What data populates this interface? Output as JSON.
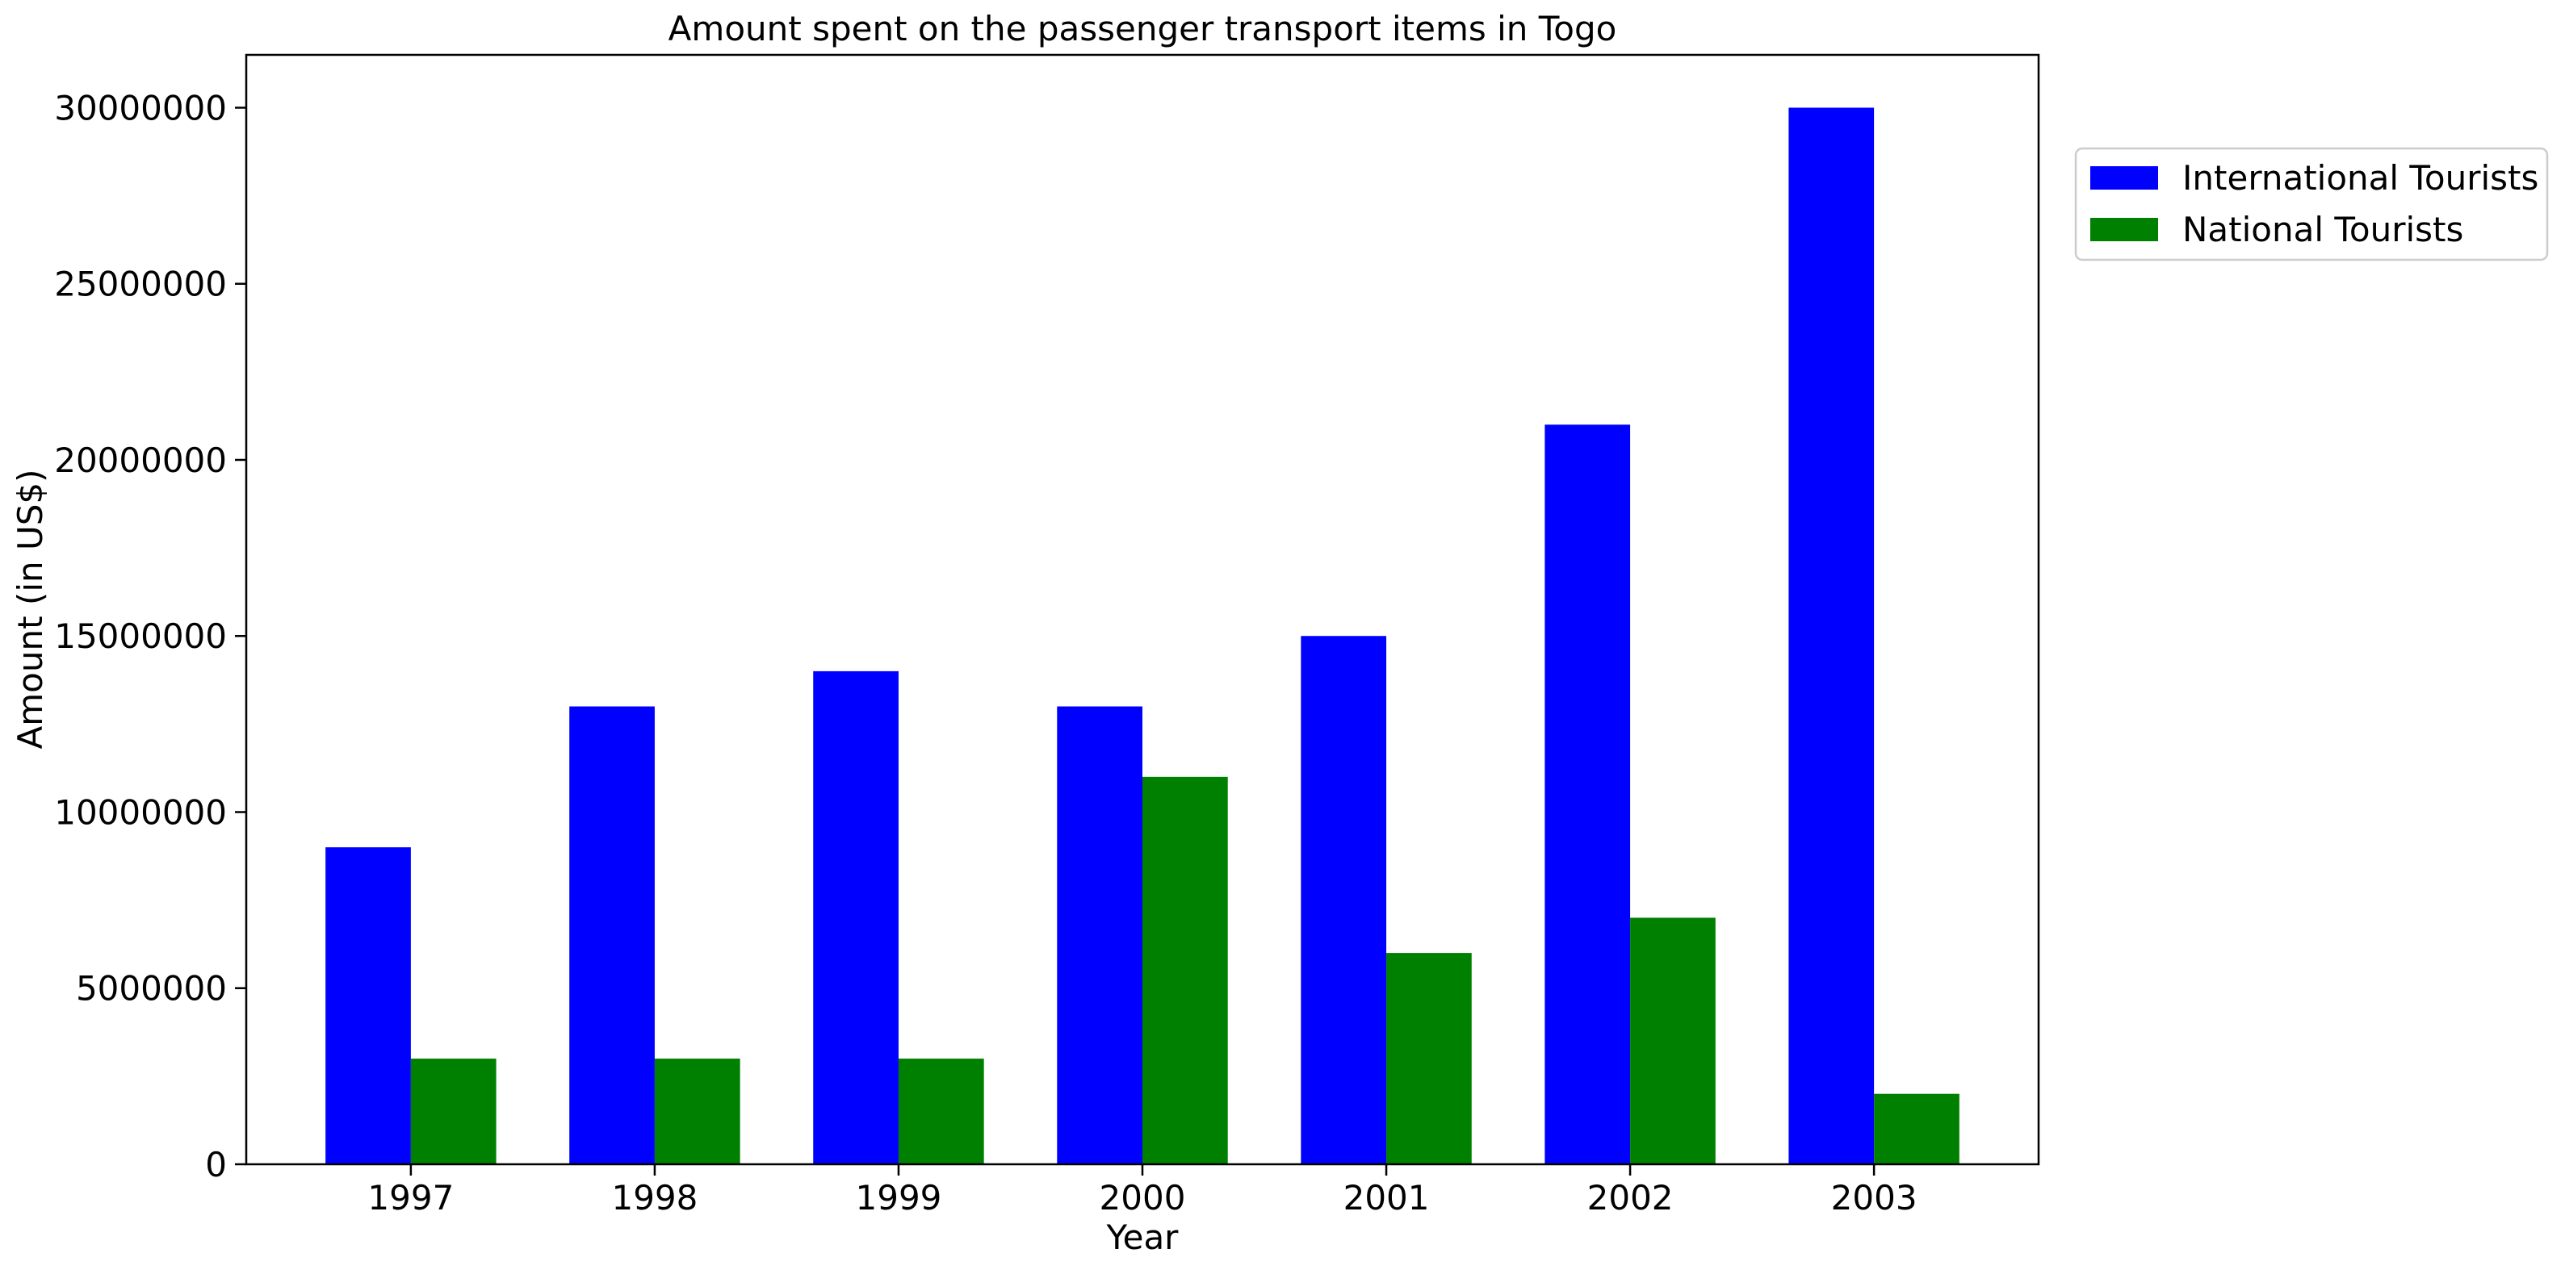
{
  "chart_data": {
    "type": "bar",
    "title": "Amount spent on the passenger transport items in Togo",
    "xlabel": "Year",
    "ylabel": "Amount (in US$)",
    "categories": [
      "1997",
      "1998",
      "1999",
      "2000",
      "2001",
      "2002",
      "2003"
    ],
    "series": [
      {
        "name": "International Tourists",
        "color": "#0000ff",
        "values": [
          9000000,
          13000000,
          14000000,
          13000000,
          15000000,
          21000000,
          30000000
        ]
      },
      {
        "name": "National Tourists",
        "color": "#008000",
        "values": [
          3000000,
          3000000,
          3000000,
          11000000,
          6000000,
          7000000,
          2000000
        ]
      }
    ],
    "ylim": [
      0,
      31500000
    ],
    "yticks": [
      "0",
      "5000000",
      "10000000",
      "15000000",
      "20000000",
      "25000000",
      "30000000"
    ],
    "grid": false,
    "legend_position": "outside-top-right"
  }
}
